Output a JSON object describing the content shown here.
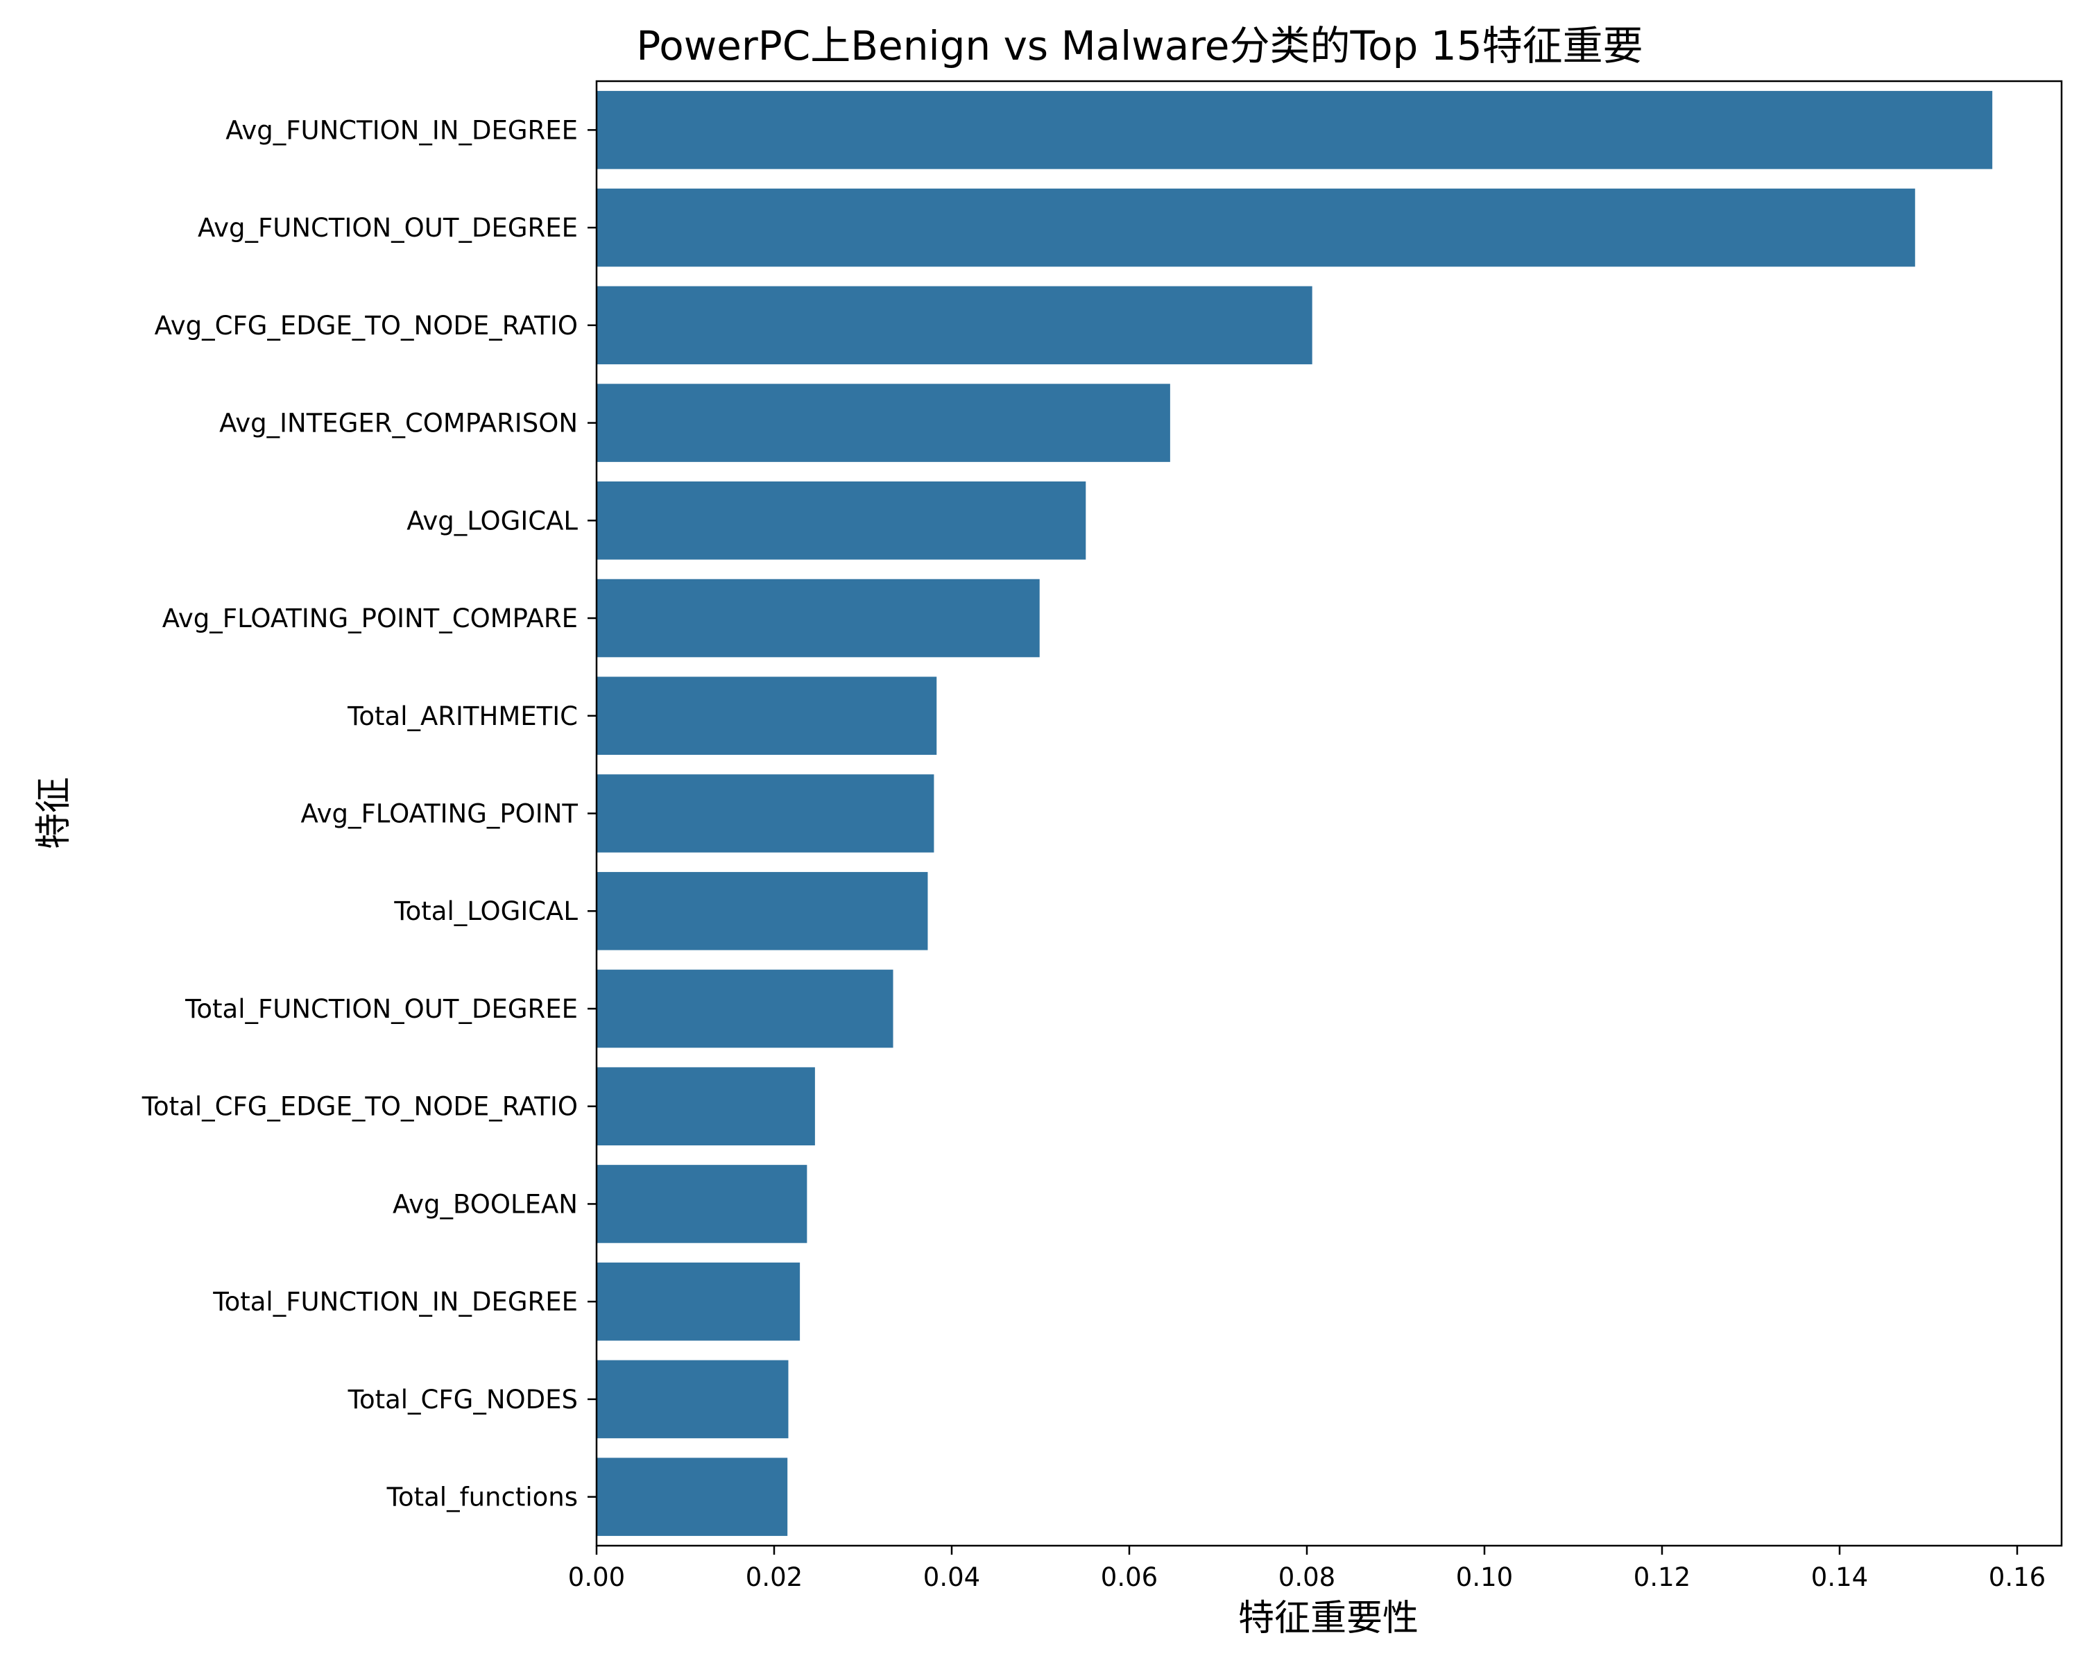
{
  "chart_data": {
    "type": "bar",
    "orientation": "horizontal",
    "title": "PowerPC上Benign vs Malware分类的Top 15特征重要",
    "xlabel": "特征重要性",
    "ylabel": "特征",
    "xlim": [
      0,
      0.165
    ],
    "xticks": [
      0.0,
      0.02,
      0.04,
      0.06,
      0.08,
      0.1,
      0.12,
      0.14,
      0.16
    ],
    "xtick_labels": [
      "0.00",
      "0.02",
      "0.04",
      "0.06",
      "0.08",
      "0.10",
      "0.12",
      "0.14",
      "0.16"
    ],
    "grid": false,
    "bar_color": "#3274a1",
    "categories": [
      "Avg_FUNCTION_IN_DEGREE",
      "Avg_FUNCTION_OUT_DEGREE",
      "Avg_CFG_EDGE_TO_NODE_RATIO",
      "Avg_INTEGER_COMPARISON",
      "Avg_LOGICAL",
      "Avg_FLOATING_POINT_COMPARE",
      "Total_ARITHMETIC",
      "Avg_FLOATING_POINT",
      "Total_LOGICAL",
      "Total_FUNCTION_OUT_DEGREE",
      "Total_CFG_EDGE_TO_NODE_RATIO",
      "Avg_BOOLEAN",
      "Total_FUNCTION_IN_DEGREE",
      "Total_CFG_NODES",
      "Total_functions"
    ],
    "values": [
      0.1572,
      0.1485,
      0.0806,
      0.0646,
      0.0551,
      0.0499,
      0.0383,
      0.038,
      0.0373,
      0.0334,
      0.0246,
      0.0237,
      0.0229,
      0.0216,
      0.0215
    ]
  }
}
